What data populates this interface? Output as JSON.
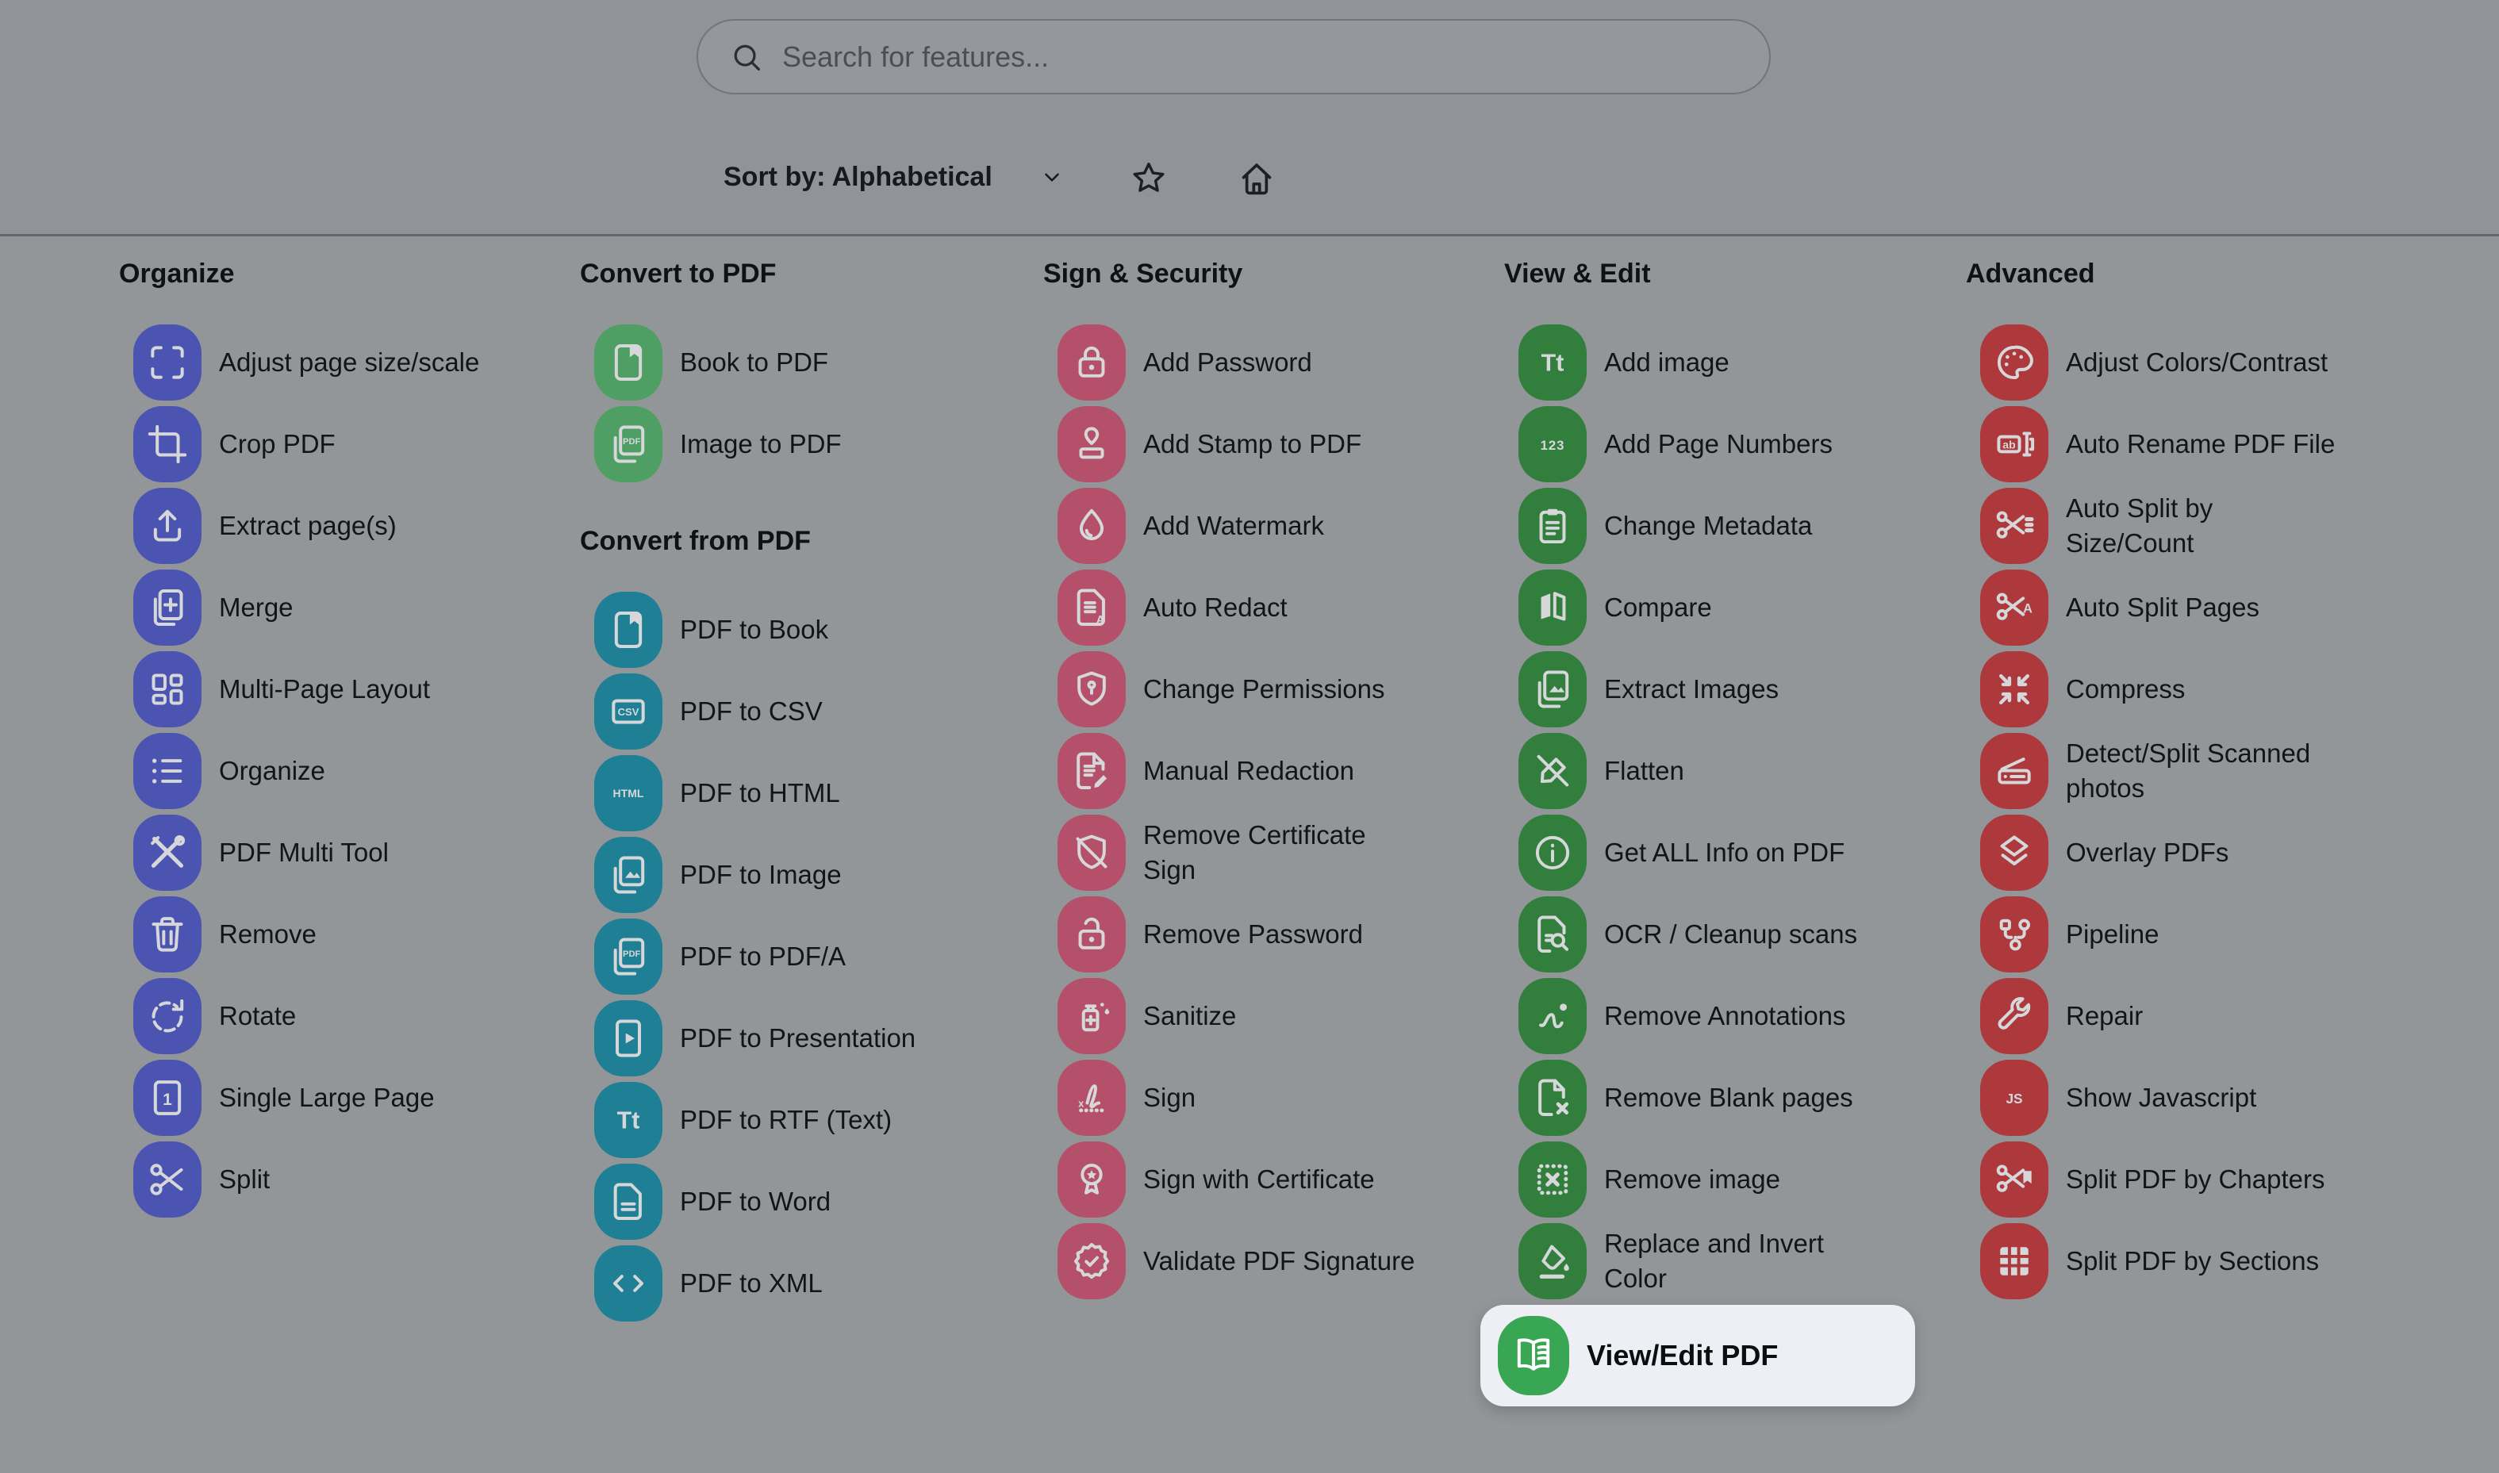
{
  "header": {
    "search_placeholder": "Search for features...",
    "sort_label": "Sort by: Alphabetical"
  },
  "ui_colors": {
    "page_background": "#939698",
    "topbar_background": "#909397",
    "divider": "#64676d",
    "glyph": "#d6d7d9",
    "highlight_box": "#edeff5",
    "highlight_tile": "#38a652"
  },
  "columns": [
    {
      "title": "Organize",
      "sections": [
        {
          "tile_color": "#4c54b2",
          "items": [
            {
              "label": "Adjust page size/scale",
              "icon": "frame-corners"
            },
            {
              "label": "Crop PDF",
              "icon": "crop"
            },
            {
              "label": "Extract page(s)",
              "icon": "upload-tray"
            },
            {
              "label": "Merge",
              "icon": "pages-plus"
            },
            {
              "label": "Multi-Page Layout",
              "icon": "grid-layout"
            },
            {
              "label": "Organize",
              "icon": "list-bullets"
            },
            {
              "label": "PDF Multi Tool",
              "icon": "tools-cross"
            },
            {
              "label": "Remove",
              "icon": "trash"
            },
            {
              "label": "Rotate",
              "icon": "rotate-cw"
            },
            {
              "label": "Single Large Page",
              "icon": "page-one"
            },
            {
              "label": "Split",
              "icon": "scissors"
            }
          ]
        }
      ]
    },
    {
      "title": "Convert to PDF",
      "sections": [
        {
          "tile_color": "#4f9e64",
          "items": [
            {
              "label": "Book to PDF",
              "icon": "book"
            },
            {
              "label": "Image to PDF",
              "icon": "layered-pdf"
            }
          ]
        },
        {
          "title": "Convert from PDF",
          "tile_color": "#1e7f95",
          "items": [
            {
              "label": "PDF to Book",
              "icon": "book"
            },
            {
              "label": "PDF to CSV",
              "icon": "csv-box"
            },
            {
              "label": "PDF to HTML",
              "icon": "html-text"
            },
            {
              "label": "PDF to Image",
              "icon": "layered-image"
            },
            {
              "label": "PDF to PDF/A",
              "icon": "layered-pdf"
            },
            {
              "label": "PDF to Presentation",
              "icon": "presentation-play"
            },
            {
              "label": "PDF to RTF (Text)",
              "icon": "tt-text"
            },
            {
              "label": "PDF to Word",
              "icon": "doc-lines"
            },
            {
              "label": "PDF to XML",
              "icon": "code-angle"
            }
          ]
        }
      ]
    },
    {
      "title": "Sign & Security",
      "sections": [
        {
          "tile_color": "#b45069",
          "items": [
            {
              "label": "Add Password",
              "icon": "lock"
            },
            {
              "label": "Add Stamp to PDF",
              "icon": "stamp"
            },
            {
              "label": "Add Watermark",
              "icon": "droplet"
            },
            {
              "label": "Auto Redact",
              "icon": "doc-lines-a"
            },
            {
              "label": "Change Permissions",
              "icon": "shield-keyhole"
            },
            {
              "label": "Manual Redaction",
              "icon": "doc-pencil"
            },
            {
              "label": "Remove Certificate\nSign",
              "icon": "shield-slash"
            },
            {
              "label": "Remove Password",
              "icon": "unlock"
            },
            {
              "label": "Sanitize",
              "icon": "sanitize-bottle"
            },
            {
              "label": "Sign",
              "icon": "signature"
            },
            {
              "label": "Sign with Certificate",
              "icon": "medal"
            },
            {
              "label": "Validate PDF Signature",
              "icon": "badge-check"
            }
          ]
        }
      ]
    },
    {
      "title": "View & Edit",
      "sections": [
        {
          "tile_color": "#317e3d",
          "items": [
            {
              "label": "Add image",
              "icon": "tt-text"
            },
            {
              "label": "Add Page Numbers",
              "icon": "one-two-three"
            },
            {
              "label": "Change Metadata",
              "icon": "clipboard"
            },
            {
              "label": "Compare",
              "icon": "compare-split"
            },
            {
              "label": "Extract Images",
              "icon": "layered-image"
            },
            {
              "label": "Flatten",
              "icon": "pen-slash"
            },
            {
              "label": "Get ALL Info on PDF",
              "icon": "info-circle"
            },
            {
              "label": "OCR / Cleanup scans",
              "icon": "doc-magnifier"
            },
            {
              "label": "Remove Annotations",
              "icon": "squiggle-dot"
            },
            {
              "label": "Remove Blank pages",
              "icon": "doc-x"
            },
            {
              "label": "Remove image",
              "icon": "dotted-box-x"
            },
            {
              "label": "Replace and Invert\nColor",
              "icon": "ink-bucket"
            },
            {
              "label": "View/Edit PDF",
              "icon": "book-open",
              "highlight": true,
              "tile_color": "#38a652"
            }
          ]
        }
      ]
    },
    {
      "title": "Advanced",
      "sections": [
        {
          "tile_color": "#ad393d",
          "items": [
            {
              "label": "Adjust Colors/Contrast",
              "icon": "palette"
            },
            {
              "label": "Auto Rename PDF File",
              "icon": "ab-rename"
            },
            {
              "label": "Auto Split by\nSize/Count",
              "icon": "scissors-lines"
            },
            {
              "label": "Auto Split Pages",
              "icon": "scissors-a"
            },
            {
              "label": "Compress",
              "icon": "compress-arrows"
            },
            {
              "label": "Detect/Split Scanned\nphotos",
              "icon": "scanner"
            },
            {
              "label": "Overlay PDFs",
              "icon": "layers-diamonds"
            },
            {
              "label": "Pipeline",
              "icon": "pipeline-branch"
            },
            {
              "label": "Repair",
              "icon": "wrench"
            },
            {
              "label": "Show Javascript",
              "icon": "js-text"
            },
            {
              "label": "Split PDF by Chapters",
              "icon": "scissors-bookmark"
            },
            {
              "label": "Split PDF by Sections",
              "icon": "table-grid"
            }
          ]
        }
      ]
    }
  ]
}
